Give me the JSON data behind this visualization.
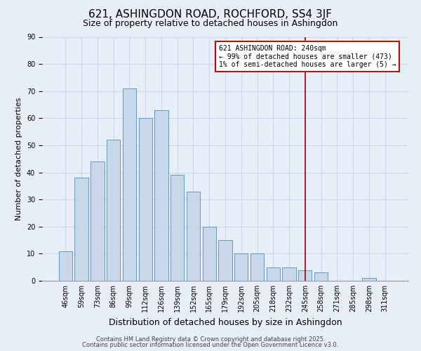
{
  "title": "621, ASHINGDON ROAD, ROCHFORD, SS4 3JF",
  "subtitle": "Size of property relative to detached houses in Ashingdon",
  "xlabel": "Distribution of detached houses by size in Ashingdon",
  "ylabel": "Number of detached properties",
  "categories": [
    "46sqm",
    "59sqm",
    "73sqm",
    "86sqm",
    "99sqm",
    "112sqm",
    "126sqm",
    "139sqm",
    "152sqm",
    "165sqm",
    "179sqm",
    "192sqm",
    "205sqm",
    "218sqm",
    "232sqm",
    "245sqm",
    "258sqm",
    "271sqm",
    "285sqm",
    "298sqm",
    "311sqm"
  ],
  "values": [
    11,
    38,
    44,
    52,
    71,
    60,
    63,
    39,
    33,
    20,
    15,
    10,
    10,
    5,
    5,
    4,
    3,
    0,
    0,
    1,
    0
  ],
  "bar_color": "#c8d8ea",
  "bar_edge_color": "#6699bb",
  "grid_color": "#d0d8e8",
  "background_color": "#e8eef8",
  "vline_x_index": 15,
  "vline_color": "#990000",
  "annotation_text": "621 ASHINGDON ROAD: 240sqm\n← 99% of detached houses are smaller (473)\n1% of semi-detached houses are larger (5) →",
  "annotation_box_edge_color": "#cc0000",
  "annotation_bg": "#ffffff",
  "ylim": [
    0,
    90
  ],
  "yticks": [
    0,
    10,
    20,
    30,
    40,
    50,
    60,
    70,
    80,
    90
  ],
  "footnote1": "Contains HM Land Registry data © Crown copyright and database right 2025.",
  "footnote2": "Contains public sector information licensed under the Open Government Licence v3.0.",
  "title_fontsize": 11,
  "subtitle_fontsize": 9,
  "xlabel_fontsize": 9,
  "ylabel_fontsize": 8,
  "tick_fontsize": 7,
  "annotation_fontsize": 7,
  "footnote_fontsize": 6
}
